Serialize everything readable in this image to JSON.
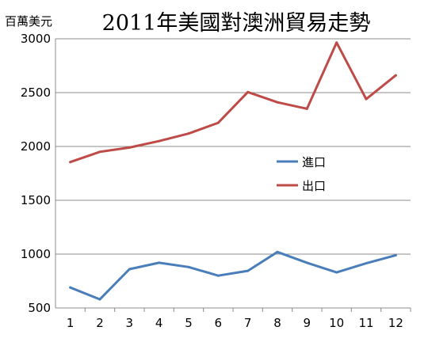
{
  "chart_data": {
    "type": "line",
    "title": "2011年美國對澳洲貿易走勢",
    "ylabel": "百萬美元",
    "xlabel": "",
    "x": [
      "1",
      "2",
      "3",
      "4",
      "5",
      "6",
      "7",
      "8",
      "9",
      "10",
      "11",
      "12"
    ],
    "ylim": [
      500,
      3000
    ],
    "yticks": [
      500,
      1000,
      1500,
      2000,
      2500,
      3000
    ],
    "grid": true,
    "legend_position": "center-right",
    "series": [
      {
        "name": "進口",
        "color": "#4a7ebb",
        "values": [
          690,
          580,
          860,
          920,
          880,
          800,
          845,
          1020,
          920,
          830,
          915,
          990
        ]
      },
      {
        "name": "出口",
        "color": "#be4b48",
        "values": [
          1855,
          1950,
          1990,
          2050,
          2120,
          2220,
          2505,
          2410,
          2350,
          2965,
          2440,
          2660
        ]
      }
    ]
  }
}
